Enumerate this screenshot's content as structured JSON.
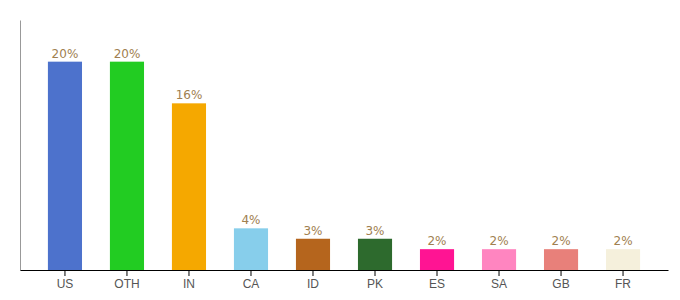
{
  "chart_data": {
    "type": "bar",
    "categories": [
      "US",
      "OTH",
      "IN",
      "CA",
      "ID",
      "PK",
      "ES",
      "SA",
      "GB",
      "FR"
    ],
    "values": [
      20,
      20,
      16,
      4,
      3,
      3,
      2,
      2,
      2,
      2
    ],
    "value_labels": [
      "20%",
      "20%",
      "16%",
      "4%",
      "3%",
      "3%",
      "2%",
      "2%",
      "2%",
      "2%"
    ],
    "colors": [
      "#4d72cc",
      "#22cc22",
      "#f5a800",
      "#87ceeb",
      "#b5651d",
      "#2d6a2d",
      "#ff1493",
      "#ff85c0",
      "#e8807a",
      "#f5f0dc"
    ],
    "ylim": [
      0,
      24
    ],
    "data_labels": true,
    "tick_labels": "x"
  }
}
